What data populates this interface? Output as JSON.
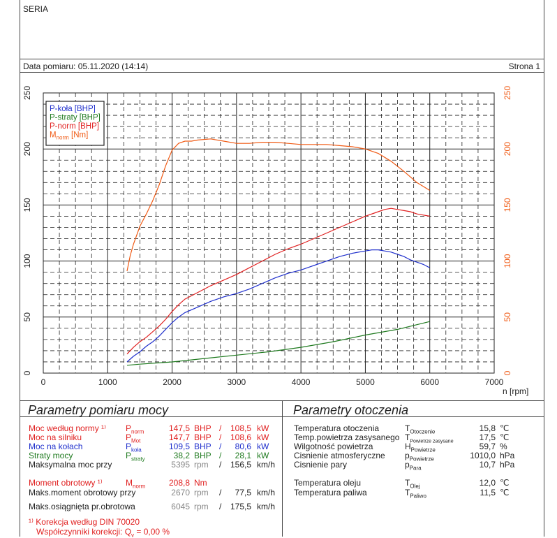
{
  "header": {
    "seria": "SERIA",
    "date_label": "Data pomiaru: 05.11.2020 (14:14)",
    "page_label": "Strona 1"
  },
  "colors": {
    "blue": "#1f2fcc",
    "green": "#1f7a1f",
    "red": "#e02020",
    "orange": "#f05a14",
    "black": "#222222"
  },
  "chart_data": {
    "type": "line",
    "xlabel": "n [rpm]",
    "xlim": [
      0,
      7000
    ],
    "ylim_left": [
      0,
      250
    ],
    "ylim_right": [
      0,
      250
    ],
    "x_ticks": [
      0,
      1000,
      2000,
      3000,
      4000,
      5000,
      6000,
      7000
    ],
    "y_ticks_left": [
      0,
      50,
      100,
      150,
      200,
      250
    ],
    "y_ticks_right": [
      0,
      50,
      100,
      150,
      200,
      250
    ],
    "grid": true,
    "legend_position": "top-left",
    "series": [
      {
        "name": "P-koła [BHP]",
        "name_main": "P-koła [BHP]",
        "sub": "",
        "after": "",
        "color": "#1f2fcc",
        "x": [
          1300,
          1400,
          1500,
          1600,
          1700,
          1800,
          1900,
          2000,
          2100,
          2200,
          2400,
          2600,
          2800,
          3000,
          3200,
          3400,
          3600,
          3800,
          4000,
          4200,
          4400,
          4600,
          4800,
          5000,
          5100,
          5200,
          5300,
          5400,
          5500,
          5600,
          5700,
          5800,
          5900,
          6000
        ],
        "y": [
          10,
          15,
          19,
          24,
          28,
          33,
          39,
          45,
          50,
          54,
          59,
          64,
          68,
          71,
          75,
          80,
          85,
          89,
          92,
          96,
          100,
          104,
          107,
          109,
          110,
          110,
          109,
          108,
          106,
          104,
          101,
          99,
          97,
          94
        ]
      },
      {
        "name": "P-straty [BHP]",
        "name_main": "P-straty [BHP]",
        "sub": "",
        "after": "",
        "color": "#1f7a1f",
        "x": [
          1300,
          1500,
          2000,
          2500,
          3000,
          3500,
          4000,
          4500,
          5000,
          5500,
          6000
        ],
        "y": [
          7,
          8,
          10,
          13,
          16,
          19,
          23,
          28,
          34,
          39,
          46
        ]
      },
      {
        "name": "P-norm [BHP]",
        "name_main": "P-norm [BHP]",
        "sub": "",
        "after": "",
        "color": "#e02020",
        "x": [
          1300,
          1400,
          1500,
          1600,
          1700,
          1800,
          1900,
          2000,
          2100,
          2200,
          2400,
          2600,
          2800,
          3000,
          3200,
          3400,
          3600,
          3800,
          4000,
          4200,
          4400,
          4600,
          4800,
          5000,
          5200,
          5300,
          5400,
          5500,
          5600,
          5700,
          5800,
          5900,
          6000
        ],
        "y": [
          17,
          23,
          28,
          32,
          37,
          42,
          48,
          55,
          61,
          66,
          72,
          78,
          83,
          88,
          94,
          100,
          106,
          111,
          115,
          120,
          125,
          130,
          135,
          140,
          144,
          146,
          147,
          146,
          145,
          144,
          142,
          141,
          140
        ]
      },
      {
        "name": "Mnorm [Nm]",
        "name_main": "M",
        "sub": "norm",
        "after": " [Nm]",
        "color": "#f05a14",
        "x": [
          1300,
          1350,
          1400,
          1500,
          1600,
          1700,
          1800,
          1900,
          2000,
          2100,
          2200,
          2300,
          2400,
          2600,
          2800,
          3000,
          3200,
          3400,
          3600,
          3800,
          4000,
          4200,
          4400,
          4600,
          4800,
          5000,
          5200,
          5400,
          5600,
          5800,
          6000
        ],
        "y": [
          91,
          105,
          115,
          131,
          142,
          154,
          168,
          185,
          199,
          205,
          207,
          207,
          208,
          209,
          207,
          205,
          205,
          206,
          206,
          205,
          204,
          204,
          204,
          203,
          202,
          200,
          196,
          189,
          180,
          170,
          163
        ]
      }
    ]
  },
  "power": {
    "title": "Parametry pomiaru mocy",
    "rows": [
      {
        "label": "Moc według normy ¹⁾",
        "sym": "P",
        "sub": "norm",
        "v1": "147,5",
        "u1": "BHP",
        "sep": "/",
        "v2": "108,5",
        "u2": "kW",
        "color": "#e02020"
      },
      {
        "label": "Moc na silniku",
        "sym": "P",
        "sub": "Mot",
        "v1": "147,7",
        "u1": "BHP",
        "sep": "/",
        "v2": "108,6",
        "u2": "kW",
        "color": "#e02020"
      },
      {
        "label": "Moc na kołach",
        "sym": "P",
        "sub": "koła",
        "v1": "109,5",
        "u1": "BHP",
        "sep": "/",
        "v2": "80,6",
        "u2": "kW",
        "color": "#1f2fcc"
      },
      {
        "label": "Straty mocy",
        "sym": "P",
        "sub": "straty",
        "v1": "38,2",
        "u1": "BHP",
        "sep": "/",
        "v2": "28,1",
        "u2": "kW",
        "color": "#1f7a1f"
      },
      {
        "label": "Maksymalna moc przy",
        "sym": "",
        "sub": "",
        "v1": "5395",
        "u1": "rpm",
        "sep": "/",
        "v2": "156,5",
        "u2": "km/h",
        "color": "#222222"
      },
      {
        "label": "Moment obrotowy ¹⁾",
        "sym": "M",
        "sub": "norm",
        "v1": "208,8",
        "u1": "Nm",
        "sep": "",
        "v2": "",
        "u2": "",
        "color": "#e02020"
      },
      {
        "label": "Maks.moment obrotowy przy",
        "sym": "",
        "sub": "",
        "v1": "2670",
        "u1": "rpm",
        "sep": "/",
        "v2": "77,5",
        "u2": "km/h",
        "color": "#222222"
      },
      {
        "label": "Maks.osiągnięta pr.obrotowa",
        "sym": "",
        "sub": "",
        "v1": "6045",
        "u1": "rpm",
        "sep": "/",
        "v2": "175,5",
        "u2": "km/h",
        "color": "#222222"
      }
    ],
    "footnote1": "¹⁾ Korekcja według DIN 70020",
    "footnote2": "Współczynniki korekcji: Q",
    "footnote2_sub": "v",
    "footnote2_val": " =  0,00 %"
  },
  "env": {
    "title": "Parametry otoczenia",
    "rows": [
      {
        "label": "Temperatura otoczenia",
        "sym": "T",
        "sub": "Otoczenie",
        "val": "15,8",
        "unit": "℃"
      },
      {
        "label": "Temp.powietrza zasysanego",
        "sym": "T",
        "sub": "Powietrze zasysane",
        "val": "17,5",
        "unit": "℃"
      },
      {
        "label": "Wilgotność powietrza",
        "sym": "H",
        "sub": "Powietrze",
        "val": "59,7",
        "unit": "%"
      },
      {
        "label": "Cisnienie atmosferyczne",
        "sym": "p",
        "sub": "Powietrze",
        "val": "1010,0",
        "unit": "hPa"
      },
      {
        "label": "Cisnienie pary",
        "sym": "p",
        "sub": "Para",
        "val": "10,7",
        "unit": "hPa"
      },
      {
        "label": "Temperatura oleju",
        "sym": "T",
        "sub": "Olej",
        "val": "12,0",
        "unit": "℃"
      },
      {
        "label": "Temperatura paliwa",
        "sym": "T",
        "sub": "Paliwo",
        "val": "11,5",
        "unit": "℃"
      }
    ]
  }
}
